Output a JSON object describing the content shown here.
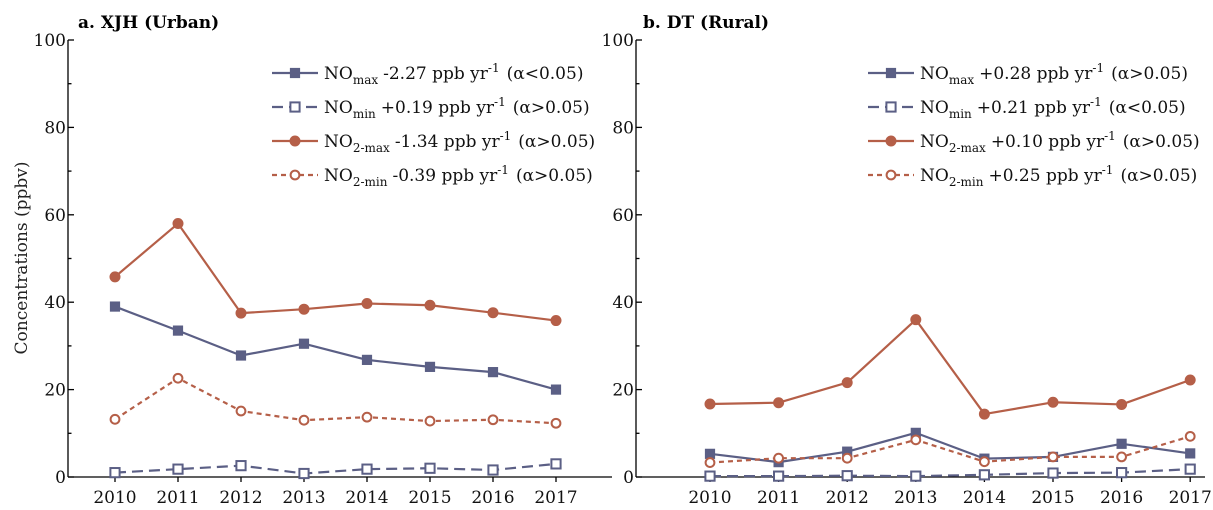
{
  "colors": {
    "NOx": "#5b5f85",
    "NO2": "#b55f48"
  },
  "ylabel": "Concentrations (ppbv)",
  "chart_data": [
    {
      "type": "line",
      "title": "a. XJH (Urban)",
      "categories": [
        "2010",
        "2011",
        "2012",
        "2013",
        "2014",
        "2015",
        "2016",
        "2017"
      ],
      "ylim": [
        0,
        100
      ],
      "yticks": [
        0,
        20,
        40,
        60,
        80,
        100
      ],
      "ylabel": "Concentrations (ppbv)",
      "legend_position": "top-right",
      "series": [
        {
          "name": "NOmax",
          "label_main": "NO",
          "label_sub": "max",
          "trend": "-2.27 ppb yr",
          "trend_sup": "-1",
          "sig": "(α<0.05)",
          "color": "#5b5f85",
          "dash": "solid",
          "marker": "square-filled",
          "values": [
            39.0,
            33.5,
            27.8,
            30.5,
            26.8,
            25.2,
            24.0,
            20.0
          ]
        },
        {
          "name": "NOmin",
          "label_main": "NO",
          "label_sub": "min",
          "trend": "+0.19 ppb yr",
          "trend_sup": "-1",
          "sig": "(α>0.05)",
          "color": "#5b5f85",
          "dash": "dashed",
          "marker": "square-open",
          "values": [
            1.0,
            1.8,
            2.6,
            0.8,
            1.8,
            2.0,
            1.6,
            3.0
          ]
        },
        {
          "name": "NO2-max",
          "label_main": "NO",
          "label_sub": "2-max",
          "trend": "-1.34 ppb yr",
          "trend_sup": "-1",
          "sig": "(α>0.05)",
          "color": "#b55f48",
          "dash": "solid",
          "marker": "circle-filled",
          "values": [
            45.8,
            58.0,
            37.5,
            38.4,
            39.7,
            39.3,
            37.6,
            35.8
          ]
        },
        {
          "name": "NO2-min",
          "label_main": "NO",
          "label_sub": "2-min",
          "trend": "-0.39 ppb yr",
          "trend_sup": "-1",
          "sig": "(α>0.05)",
          "color": "#b55f48",
          "dash": "dotted",
          "marker": "circle-open",
          "values": [
            13.2,
            22.6,
            15.1,
            13.0,
            13.7,
            12.8,
            13.1,
            12.3
          ]
        }
      ]
    },
    {
      "type": "line",
      "title": "b. DT (Rural)",
      "categories": [
        "2010",
        "2011",
        "2012",
        "2013",
        "2014",
        "2015",
        "2016",
        "2017"
      ],
      "ylim": [
        0,
        100
      ],
      "yticks": [
        0,
        20,
        40,
        60,
        80,
        100
      ],
      "legend_position": "top-right",
      "series": [
        {
          "name": "NOmax",
          "label_main": "NO",
          "label_sub": "max",
          "trend": "+0.28 ppb yr",
          "trend_sup": "-1",
          "sig": "(α>0.05)",
          "color": "#5b5f85",
          "dash": "solid",
          "marker": "square-filled",
          "values": [
            5.3,
            3.4,
            5.8,
            10.1,
            4.2,
            4.6,
            7.6,
            5.4
          ]
        },
        {
          "name": "NOmin",
          "label_main": "NO",
          "label_sub": "min",
          "trend": "+0.21 ppb yr",
          "trend_sup": "-1",
          "sig": "(α<0.05)",
          "color": "#5b5f85",
          "dash": "dashed",
          "marker": "square-open",
          "values": [
            0.2,
            0.2,
            0.3,
            0.2,
            0.5,
            0.9,
            1.0,
            1.8
          ]
        },
        {
          "name": "NO2-max",
          "label_main": "NO",
          "label_sub": "2-max",
          "trend": "+0.10 ppb yr",
          "trend_sup": "-1",
          "sig": "(α>0.05)",
          "color": "#b55f48",
          "dash": "solid",
          "marker": "circle-filled",
          "values": [
            16.7,
            17.0,
            21.6,
            36.0,
            14.4,
            17.1,
            16.6,
            22.2
          ]
        },
        {
          "name": "NO2-min",
          "label_main": "NO",
          "label_sub": "2-min",
          "trend": "+0.25 ppb yr",
          "trend_sup": "-1",
          "sig": "(α>0.05)",
          "color": "#b55f48",
          "dash": "dotted",
          "marker": "circle-open",
          "values": [
            3.3,
            4.3,
            4.3,
            8.5,
            3.5,
            4.6,
            4.6,
            9.3
          ]
        }
      ]
    }
  ]
}
